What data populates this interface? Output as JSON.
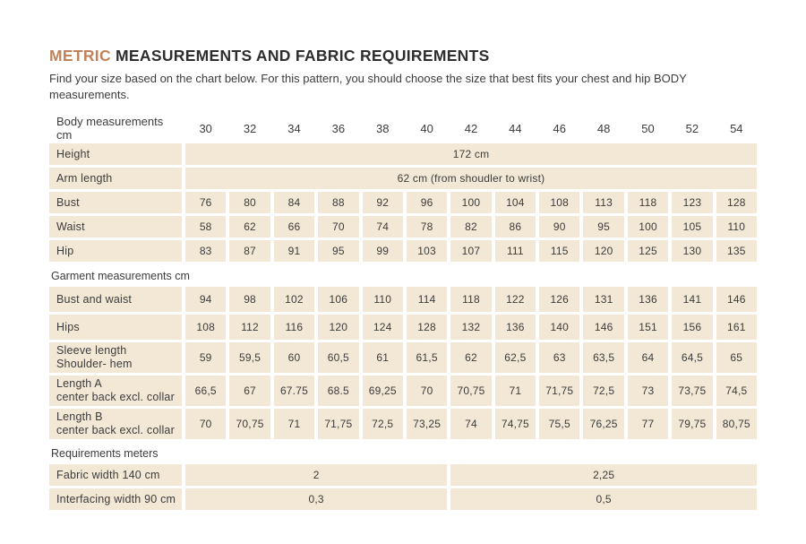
{
  "header": {
    "title_accent": "METRIC",
    "title_rest": " MEASUREMENTS AND FABRIC REQUIREMENTS",
    "subtitle": "Find your size based on the chart below. For this pattern, you should choose the size that best fits your chest and hip BODY measurements."
  },
  "colors": {
    "accent": "#c1825a",
    "cell_background": "#f2e8d5",
    "text": "#3c3c3c",
    "page_background": "#ffffff"
  },
  "chart_data": {
    "type": "table",
    "title": "METRIC MEASUREMENTS AND FABRIC REQUIREMENTS",
    "header": {
      "label": "Body measurements cm",
      "sizes": [
        "30",
        "32",
        "34",
        "36",
        "38",
        "40",
        "42",
        "44",
        "46",
        "48",
        "50",
        "52",
        "54"
      ]
    },
    "rows": [
      {
        "type": "span",
        "label": "Height",
        "value": "172 cm"
      },
      {
        "type": "span",
        "label": "Arm length",
        "value": "62 cm (from shoudler to wrist)"
      },
      {
        "type": "values",
        "label": "Bust",
        "values": [
          "76",
          "80",
          "84",
          "88",
          "92",
          "96",
          "100",
          "104",
          "108",
          "113",
          "118",
          "123",
          "128"
        ]
      },
      {
        "type": "values",
        "label": "Waist",
        "values": [
          "58",
          "62",
          "66",
          "70",
          "74",
          "78",
          "82",
          "86",
          "90",
          "95",
          "100",
          "105",
          "110"
        ]
      },
      {
        "type": "values",
        "label": "Hip",
        "values": [
          "83",
          "87",
          "91",
          "95",
          "99",
          "103",
          "107",
          "111",
          "115",
          "120",
          "125",
          "130",
          "135"
        ]
      },
      {
        "type": "section",
        "label": "Garment measurements cm"
      },
      {
        "type": "values",
        "tall": true,
        "label": "Bust and waist",
        "values": [
          "94",
          "98",
          "102",
          "106",
          "110",
          "114",
          "118",
          "122",
          "126",
          "131",
          "136",
          "141",
          "146"
        ]
      },
      {
        "type": "values",
        "tall": true,
        "label": "Hips",
        "values": [
          "108",
          "112",
          "116",
          "120",
          "124",
          "128",
          "132",
          "136",
          "140",
          "146",
          "151",
          "156",
          "161"
        ]
      },
      {
        "type": "values",
        "label": "Sleeve length",
        "label2": "Shoulder- hem",
        "values": [
          "59",
          "59,5",
          "60",
          "60,5",
          "61",
          "61,5",
          "62",
          "62,5",
          "63",
          "63,5",
          "64",
          "64,5",
          "65"
        ]
      },
      {
        "type": "values",
        "label": "Length A",
        "label2": "center back excl. collar",
        "values": [
          "66,5",
          "67",
          "67.75",
          "68.5",
          "69,25",
          "70",
          "70,75",
          "71",
          "71,75",
          "72,5",
          "73",
          "73,75",
          "74,5"
        ]
      },
      {
        "type": "values",
        "label": "Length B",
        "label2": "center back excl. collar",
        "values": [
          "70",
          "70,75",
          "71",
          "71,75",
          "72,5",
          "73,25",
          "74",
          "74,75",
          "75,5",
          "76,25",
          "77",
          "79,75",
          "80,75"
        ]
      },
      {
        "type": "section",
        "label": "Requirements meters"
      },
      {
        "type": "split",
        "label": "Fabric width 140 cm",
        "values": [
          "2",
          "2,25"
        ],
        "spans": [
          6,
          7
        ]
      },
      {
        "type": "split",
        "label": "Interfacing width 90 cm",
        "values": [
          "0,3",
          "0,5"
        ],
        "spans": [
          6,
          7
        ]
      }
    ]
  }
}
